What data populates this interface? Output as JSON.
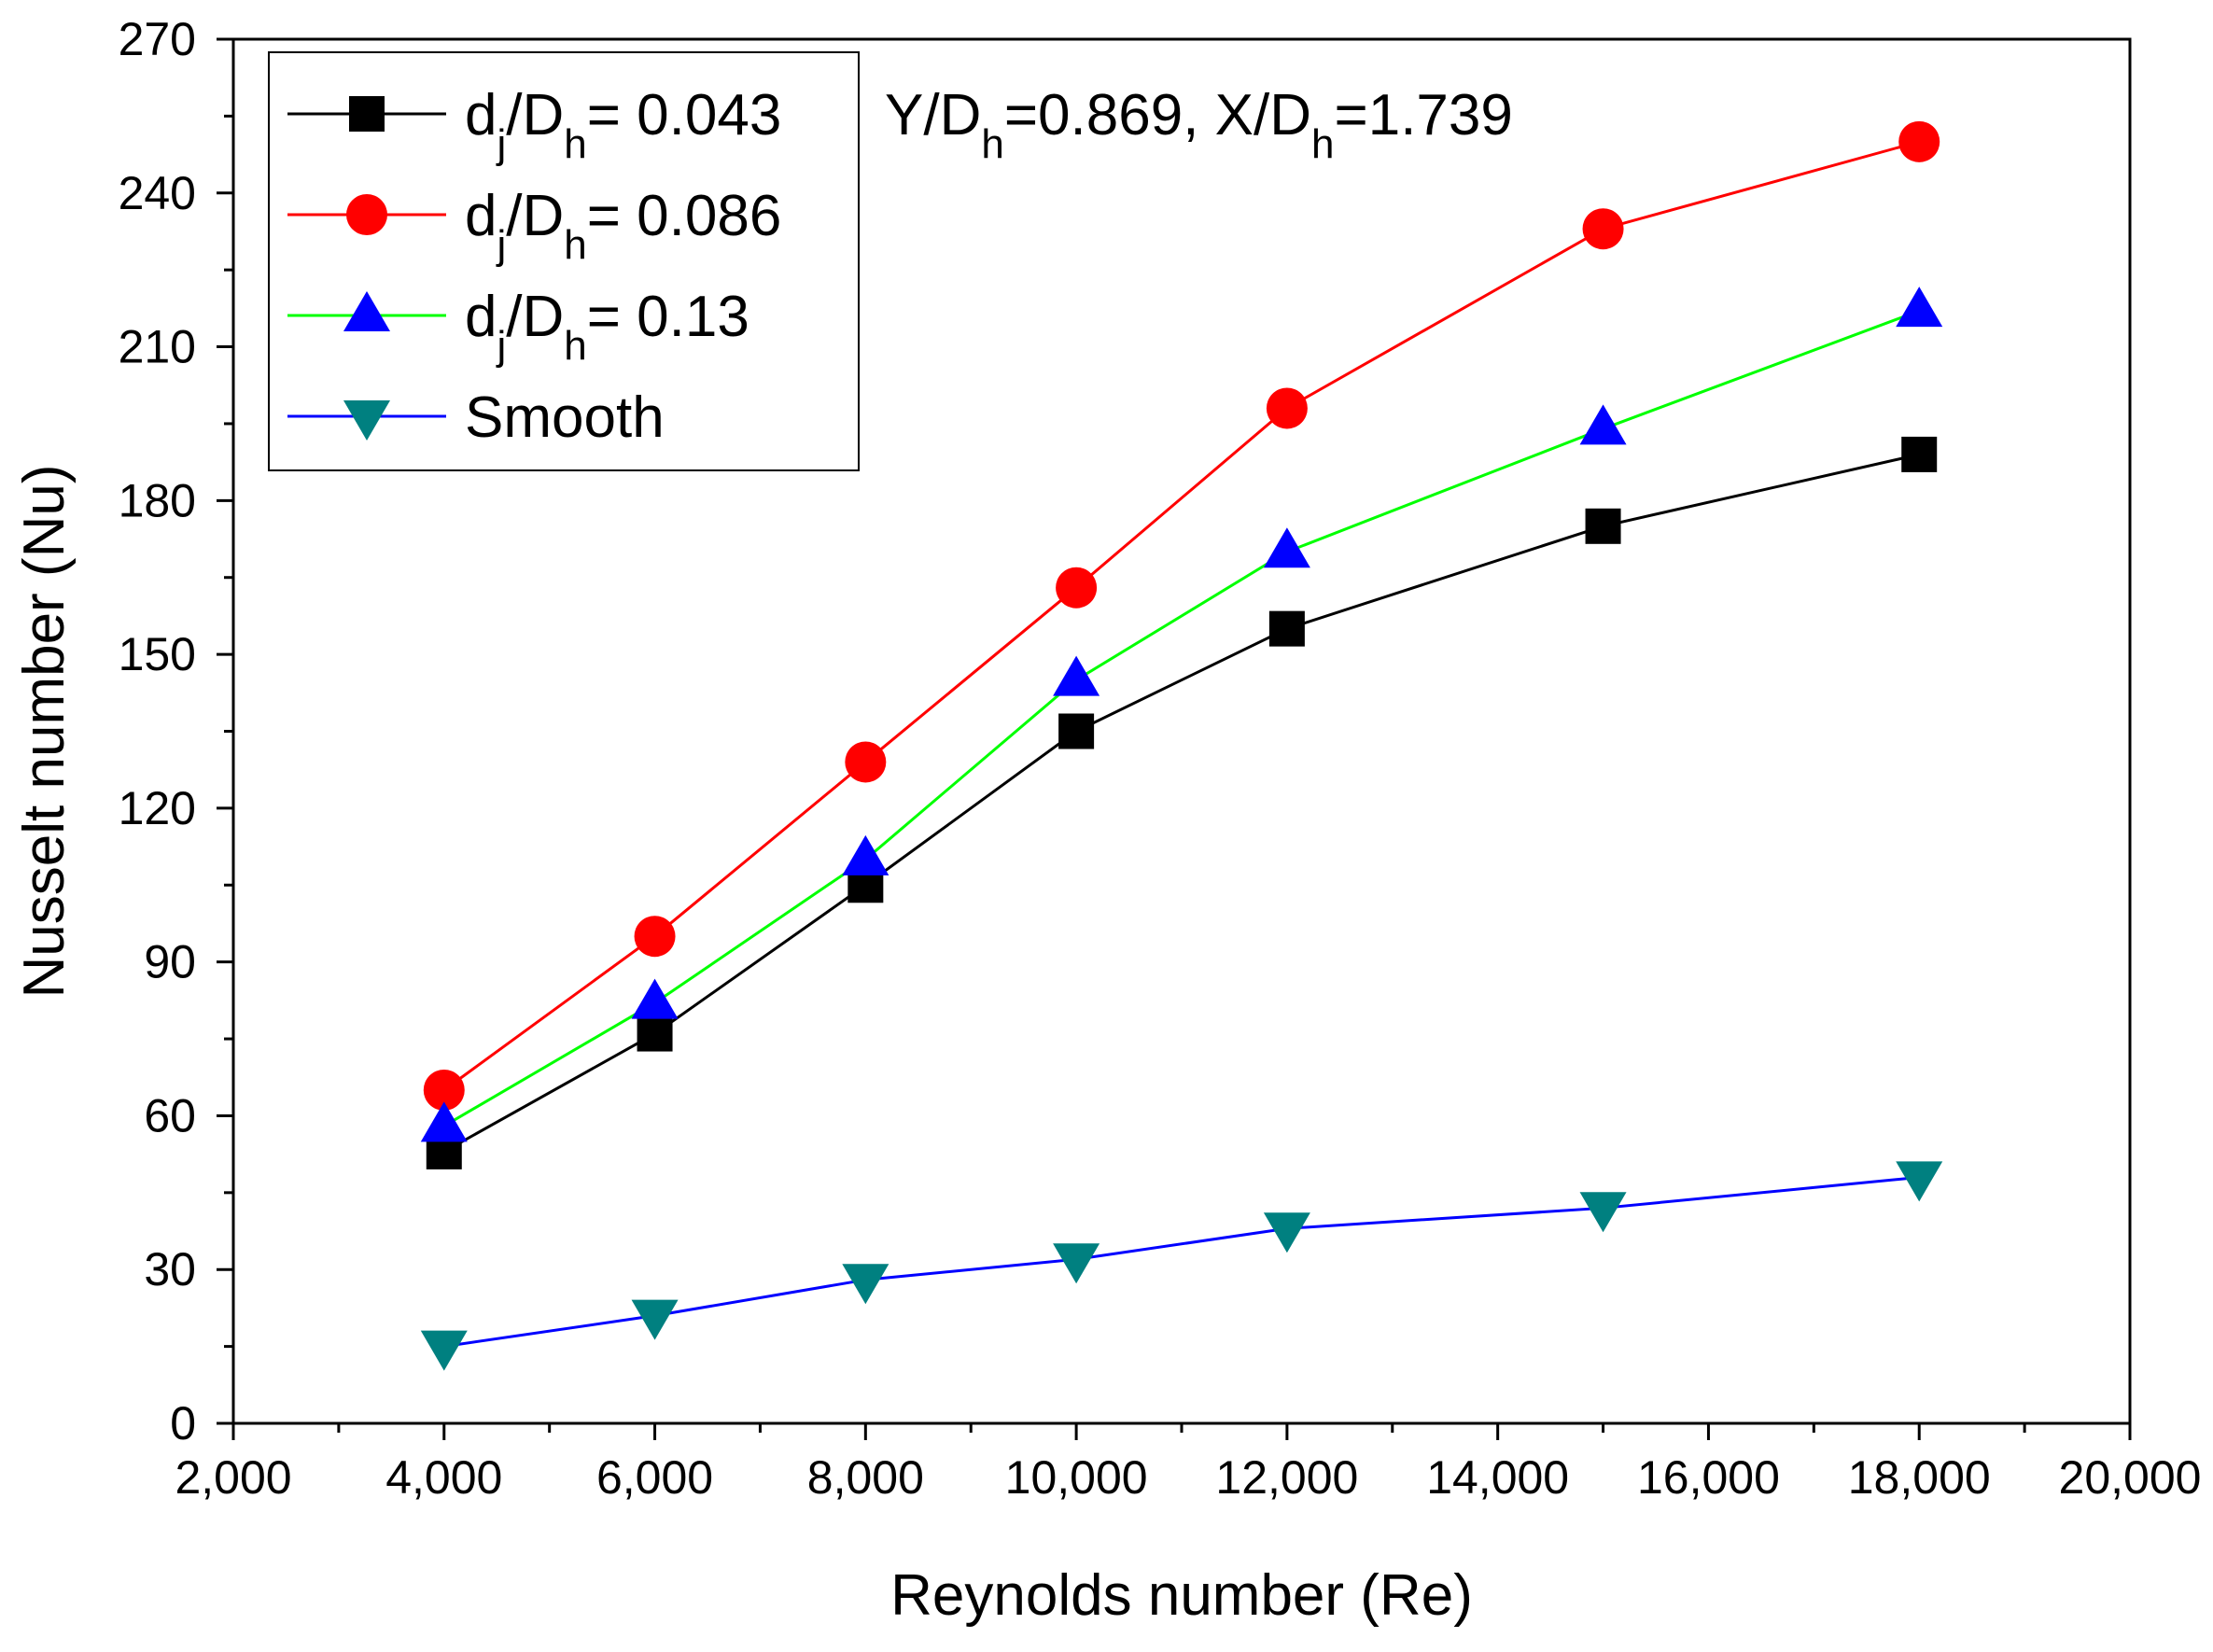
{
  "chart_data": {
    "type": "line",
    "title": "",
    "xlabel": "Reynolds number (Re)",
    "ylabel": "Nusselt number (Nu)",
    "xlim": [
      2000,
      20000
    ],
    "ylim": [
      0,
      270
    ],
    "x_ticks": [
      2000,
      4000,
      6000,
      8000,
      10000,
      12000,
      14000,
      16000,
      18000,
      20000
    ],
    "x_tick_labels": [
      "2,000",
      "4,000",
      "6,000",
      "8,000",
      "10,000",
      "12,000",
      "14,000",
      "16,000",
      "18,000",
      "20,000"
    ],
    "y_ticks": [
      0,
      30,
      60,
      90,
      120,
      150,
      180,
      210,
      240,
      270
    ],
    "y_tick_labels": [
      "0",
      "30",
      "60",
      "90",
      "120",
      "150",
      "180",
      "210",
      "240",
      "270"
    ],
    "grid": false,
    "legend_position": "top-left",
    "annotation": {
      "parts": [
        {
          "text": "Y/D",
          "sub": false
        },
        {
          "text": "h",
          "sub": true
        },
        {
          "text": "=0.869, X/D",
          "sub": false
        },
        {
          "text": "h",
          "sub": true
        },
        {
          "text": "=1.739",
          "sub": false
        }
      ]
    },
    "x": [
      4000,
      6000,
      8000,
      10000,
      12000,
      15000,
      18000
    ],
    "series": [
      {
        "name": "dj/Dh = 0.043",
        "label_parts": [
          {
            "text": "d",
            "sub": false
          },
          {
            "text": "j",
            "sub": true
          },
          {
            "text": "/D",
            "sub": false
          },
          {
            "text": "h",
            "sub": true
          },
          {
            "text": "= 0.043",
            "sub": false
          }
        ],
        "values": [
          53,
          76,
          105,
          135,
          155,
          175,
          189
        ],
        "line_color": "#000000",
        "marker": "square",
        "marker_color": "#000000"
      },
      {
        "name": "dj/Dh = 0.086",
        "label_parts": [
          {
            "text": "d",
            "sub": false
          },
          {
            "text": "j",
            "sub": true
          },
          {
            "text": "/D",
            "sub": false
          },
          {
            "text": "h",
            "sub": true
          },
          {
            "text": "= 0.086",
            "sub": false
          }
        ],
        "values": [
          65,
          95,
          129,
          163,
          198,
          233,
          250
        ],
        "line_color": "#ff0000",
        "marker": "circle",
        "marker_color": "#ff0000"
      },
      {
        "name": "dj/Dh = 0.13",
        "label_parts": [
          {
            "text": "d",
            "sub": false
          },
          {
            "text": "j",
            "sub": true
          },
          {
            "text": "/D",
            "sub": false
          },
          {
            "text": "h",
            "sub": true
          },
          {
            "text": "= 0.13",
            "sub": false
          }
        ],
        "values": [
          58,
          82,
          110,
          145,
          170,
          194,
          217
        ],
        "line_color": "#00ff00",
        "marker": "triangle-up",
        "marker_color": "#0000ff"
      },
      {
        "name": "Smooth",
        "label_parts": [
          {
            "text": "Smooth",
            "sub": false
          }
        ],
        "values": [
          15,
          21,
          28,
          32,
          38,
          42,
          48
        ],
        "line_color": "#0000ff",
        "marker": "triangle-down",
        "marker_color": "#008080"
      }
    ]
  }
}
